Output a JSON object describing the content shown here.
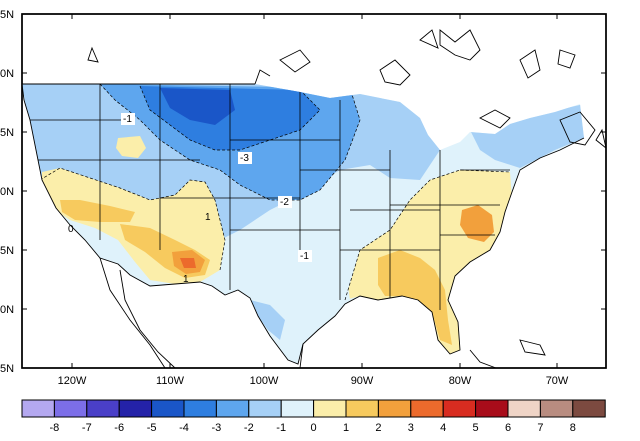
{
  "map": {
    "lat_labels": [
      "5N",
      "0N",
      "5N",
      "0N",
      "5N",
      "0N",
      "5N"
    ],
    "lon_labels": [
      "120W",
      "110W",
      "100W",
      "90W",
      "80W",
      "70W"
    ],
    "contour_labels": [
      "-1",
      "-3",
      "-2",
      "-1",
      "0",
      "1",
      "1"
    ]
  },
  "legend": {
    "labels": [
      "-8",
      "-7",
      "-6",
      "-5",
      "-4",
      "-3",
      "-2",
      "-1",
      "0",
      "1",
      "2",
      "3",
      "4",
      "5",
      "6",
      "7",
      "8"
    ],
    "colors": [
      "#b4a8f0",
      "#7c6ee8",
      "#4a3fc8",
      "#2422a8",
      "#1a56c8",
      "#2e7ee0",
      "#5ea6ee",
      "#a6d0f6",
      "#dff2fb",
      "#fbeeaa",
      "#f7ca5e",
      "#f2a03c",
      "#ec6a2c",
      "#d82c20",
      "#a80c1a",
      "#efd4c6",
      "#b88c80",
      "#7c4a40"
    ]
  }
}
